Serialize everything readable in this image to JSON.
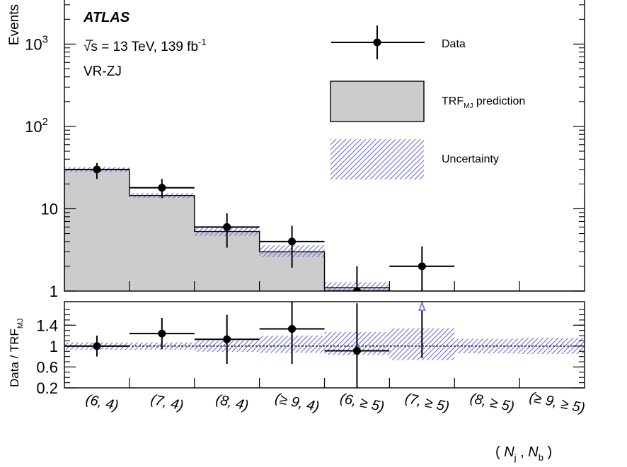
{
  "chart_data": {
    "type": "histogram",
    "experiment": "ATLAS",
    "energy_label": "√s = 13 TeV, 139 fb",
    "energy_sup": "-1",
    "region": "VR-ZJ",
    "ylabel": "Events",
    "ratio_ylabel_main": "Data / TRF",
    "ratio_ylabel_sub": "MJ",
    "xlabel_nj": "N",
    "xlabel_nj_sub": "j",
    "xlabel_nb": "N",
    "xlabel_nb_sub": "b",
    "categories": [
      "(6, 4)",
      "(7, 4)",
      "(8, 4)",
      "(≥ 9, 4)",
      "(6, ≥ 5)",
      "(7, ≥ 5)",
      "(8, ≥ 5)",
      "(≥ 9, ≥ 5)"
    ],
    "y_scale": "log",
    "ylim": [
      1,
      3500
    ],
    "y_ticks": [
      {
        "value": 1,
        "label": "1"
      },
      {
        "value": 10,
        "label": "10"
      },
      {
        "value": 100,
        "label": "10",
        "sup": "2"
      },
      {
        "value": 1000,
        "label": "10",
        "sup": "3"
      }
    ],
    "prediction": {
      "name": "TRF",
      "name_sub": "MJ",
      "name_suffix": " prediction",
      "values": [
        30,
        14.5,
        5.3,
        3.0,
        1.1,
        1.0,
        1.0,
        1.0
      ],
      "unc_low": [
        28,
        13.5,
        4.7,
        2.6,
        1.0,
        1.0,
        1.0,
        1.0
      ],
      "unc_high": [
        32,
        15.5,
        5.9,
        3.6,
        1.28,
        1.0,
        1.0,
        1.0
      ]
    },
    "data": {
      "name": "Data",
      "values": [
        30,
        18,
        6,
        4,
        1,
        2,
        null,
        null
      ],
      "err_low": [
        6,
        4,
        2.5,
        2,
        1,
        1.2,
        null,
        null
      ],
      "err_high": [
        6,
        5,
        2.8,
        2.2,
        1,
        1.5,
        null,
        null
      ]
    },
    "uncertainty_name": "Uncertainty",
    "ratio": {
      "ylim": [
        0.2,
        1.85
      ],
      "y_ticks": [
        {
          "value": 0.2,
          "label": "0.2"
        },
        {
          "value": 0.6,
          "label": "0.6"
        },
        {
          "value": 1,
          "label": "1"
        },
        {
          "value": 1.4,
          "label": "1.4"
        }
      ],
      "values": [
        1.0,
        1.24,
        1.13,
        1.33,
        0.91,
        1.85,
        null,
        null
      ],
      "err_low": [
        0.2,
        0.3,
        0.47,
        0.67,
        0.91,
        1.08,
        null,
        null
      ],
      "err_high": [
        0.2,
        0.3,
        0.47,
        0.67,
        0.91,
        1.08,
        null,
        null
      ],
      "off_scale": [
        false,
        false,
        false,
        false,
        false,
        true,
        false,
        false
      ],
      "unc_low": [
        0.93,
        0.93,
        0.89,
        0.87,
        0.83,
        0.73,
        0.86,
        0.85
      ],
      "unc_high": [
        1.07,
        1.07,
        1.11,
        1.2,
        1.27,
        1.34,
        1.14,
        1.16
      ]
    },
    "colors": {
      "prediction_fill": "#cccccc",
      "hatch": "#6b6bd6",
      "off_scale_marker": "#7878e6"
    }
  }
}
